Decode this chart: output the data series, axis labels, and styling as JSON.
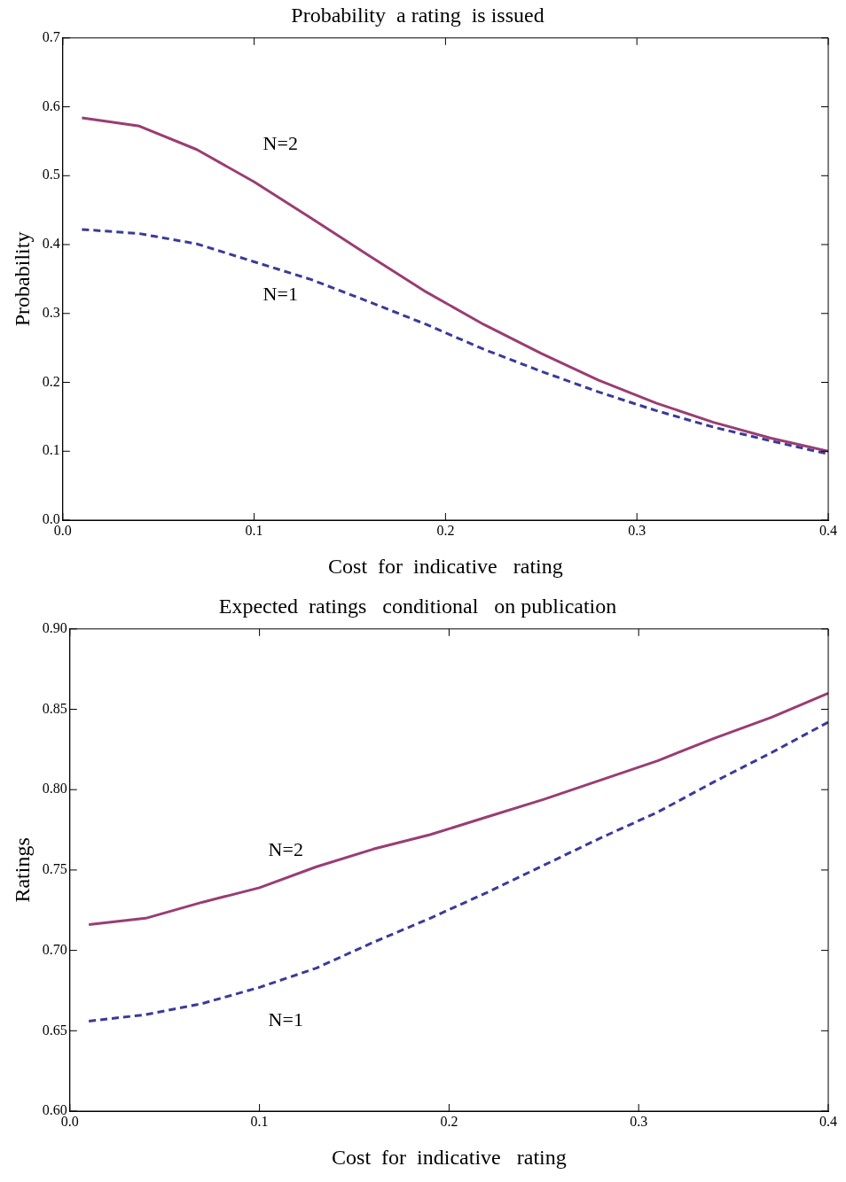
{
  "chart_data": [
    {
      "type": "line",
      "title": "Probability  a rating  is issued",
      "xlabel": "Cost  for  indicative   rating",
      "ylabel": "Probability",
      "x": [
        0.01,
        0.04,
        0.07,
        0.1,
        0.13,
        0.16,
        0.19,
        0.22,
        0.25,
        0.28,
        0.31,
        0.34,
        0.37,
        0.4
      ],
      "series": [
        {
          "name": "N=2",
          "color": "#993d73",
          "line_style": "solid",
          "values": [
            0.584,
            0.572,
            0.538,
            0.491,
            0.438,
            0.384,
            0.331,
            0.284,
            0.242,
            0.203,
            0.17,
            0.142,
            0.119,
            0.1
          ]
        },
        {
          "name": "N=1",
          "color": "#3a3a9a",
          "line_style": "dashed",
          "values": [
            0.422,
            0.416,
            0.401,
            0.375,
            0.349,
            0.317,
            0.284,
            0.248,
            0.216,
            0.186,
            0.159,
            0.135,
            0.115,
            0.096
          ]
        }
      ],
      "xlim": [
        0,
        0.4
      ],
      "xticks": [
        {
          "value": 0,
          "label": "0.0"
        },
        0.1,
        0.2,
        0.3,
        0.4
      ],
      "ylim": [
        0,
        0.7
      ],
      "yticks": [
        {
          "value": 0,
          "label": "0.0"
        },
        0.1,
        0.2,
        0.3,
        0.4,
        0.5,
        0.6,
        0.7
      ],
      "grid": false,
      "legend": false,
      "marker": "none"
    },
    {
      "type": "line",
      "title": "Expected  ratings   conditional   on publication",
      "xlabel": "Cost  for  indicative   rating",
      "ylabel": "Ratings",
      "x": [
        0.01,
        0.04,
        0.07,
        0.1,
        0.13,
        0.16,
        0.19,
        0.22,
        0.25,
        0.28,
        0.31,
        0.34,
        0.37,
        0.4
      ],
      "series": [
        {
          "name": "N=2",
          "color": "#993d73",
          "line_style": "solid",
          "values": [
            0.716,
            0.72,
            0.73,
            0.739,
            0.752,
            0.763,
            0.772,
            0.783,
            0.794,
            0.806,
            0.818,
            0.832,
            0.845,
            0.86
          ]
        },
        {
          "name": "N=1",
          "color": "#3a3a9a",
          "line_style": "dashed",
          "values": [
            0.656,
            0.66,
            0.667,
            0.677,
            0.689,
            0.705,
            0.72,
            0.736,
            0.753,
            0.77,
            0.786,
            0.805,
            0.823,
            0.842
          ]
        }
      ],
      "xlim": [
        0,
        0.4
      ],
      "xticks": [
        {
          "value": 0,
          "label": "0.0"
        },
        0.1,
        0.2,
        0.3,
        0.4
      ],
      "ylim": [
        0.6,
        0.9
      ],
      "yticks": [
        {
          "value": 0.6,
          "label": "0.60"
        },
        0.65,
        {
          "value": 0.7,
          "label": "0.70"
        },
        0.75,
        {
          "value": 0.8,
          "label": "0.80"
        },
        0.85,
        {
          "value": 0.9,
          "label": "0.90"
        }
      ],
      "grid": false,
      "legend": false,
      "marker": "none"
    }
  ]
}
